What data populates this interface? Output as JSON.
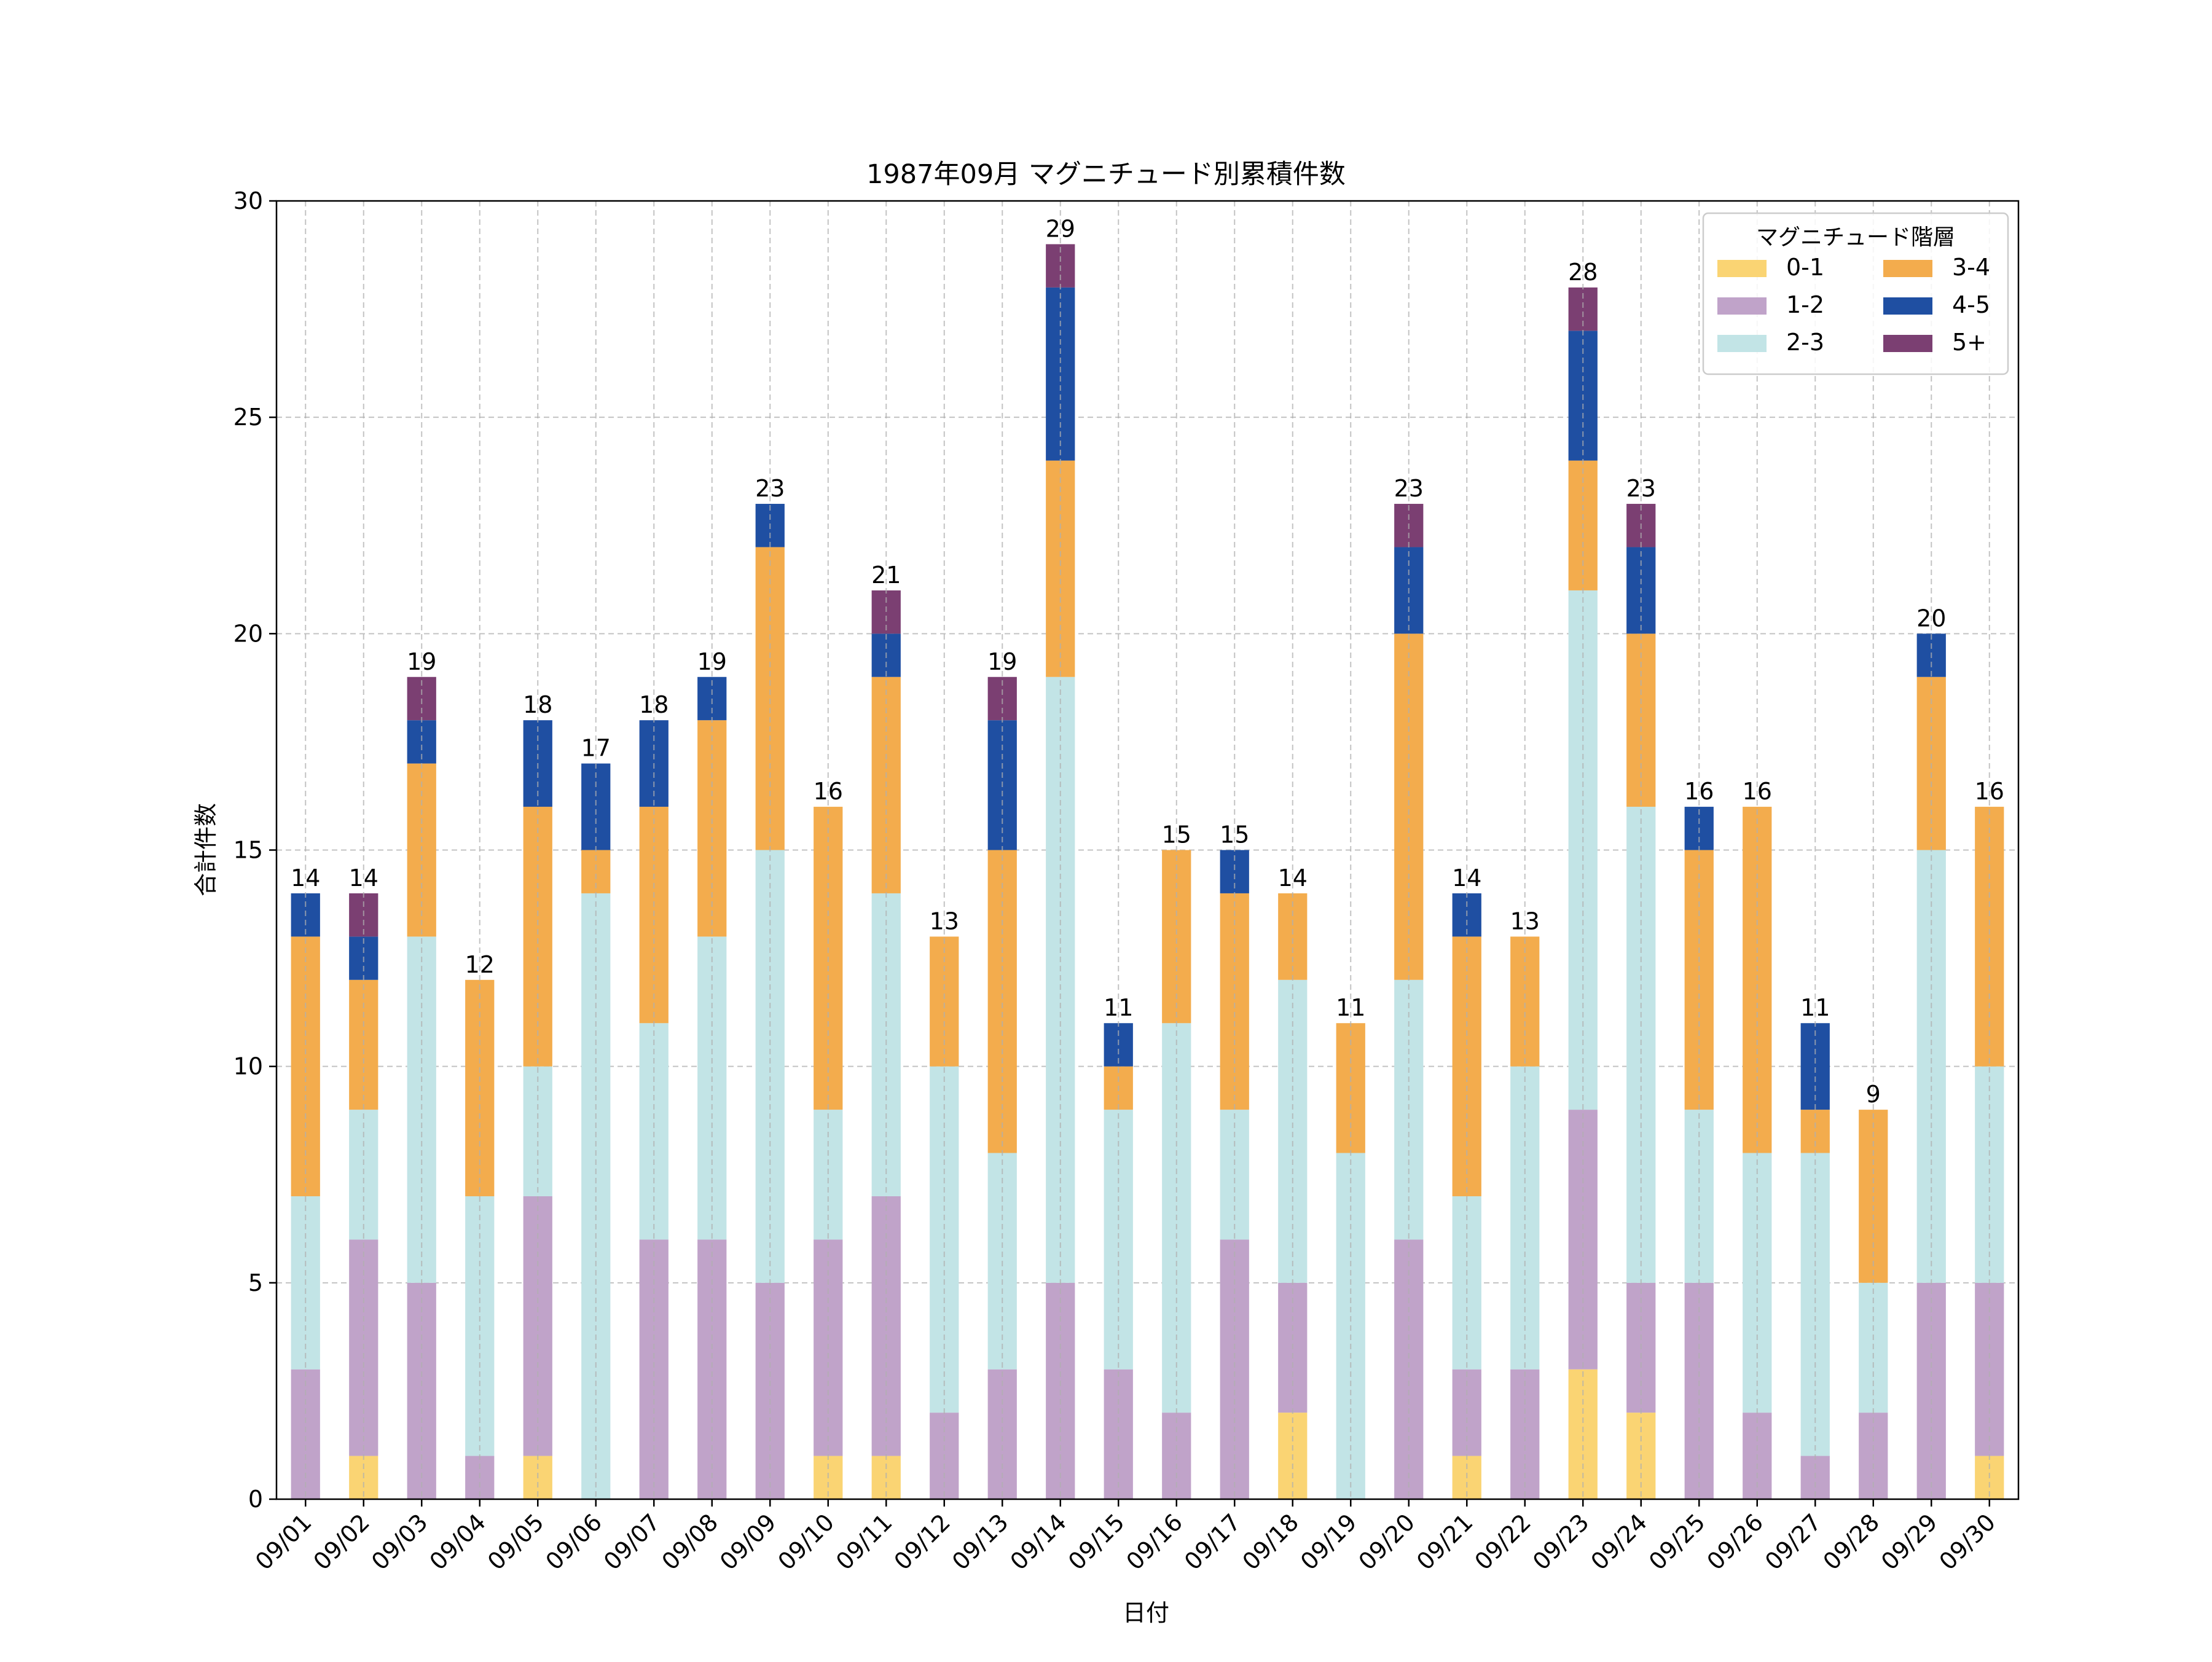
{
  "chart_data": {
    "type": "bar",
    "stacked": true,
    "title": "1987年09月 マグニチュード別累積件数",
    "xlabel": "日付",
    "ylabel": "合計件数",
    "ylim": [
      0,
      30
    ],
    "yticks": [
      0,
      5,
      10,
      15,
      20,
      25,
      30
    ],
    "grid": true,
    "legend_title": "マグニチュード階層",
    "legend_position": "top-right",
    "categories": [
      "09/01",
      "09/02",
      "09/03",
      "09/04",
      "09/05",
      "09/06",
      "09/07",
      "09/08",
      "09/09",
      "09/10",
      "09/11",
      "09/12",
      "09/13",
      "09/14",
      "09/15",
      "09/16",
      "09/17",
      "09/18",
      "09/19",
      "09/20",
      "09/21",
      "09/22",
      "09/23",
      "09/24",
      "09/25",
      "09/26",
      "09/27",
      "09/28",
      "09/29",
      "09/30"
    ],
    "series": [
      {
        "name": "0-1",
        "color": "#fad473",
        "values": [
          0,
          1,
          0,
          0,
          1,
          0,
          0,
          0,
          0,
          1,
          1,
          0,
          0,
          0,
          0,
          0,
          0,
          2,
          0,
          0,
          1,
          0,
          3,
          2,
          0,
          0,
          0,
          0,
          0,
          1
        ]
      },
      {
        "name": "1-2",
        "color": "#c0a3c9",
        "values": [
          3,
          5,
          5,
          1,
          6,
          0,
          6,
          6,
          5,
          5,
          6,
          2,
          3,
          5,
          3,
          2,
          6,
          3,
          0,
          6,
          2,
          3,
          6,
          3,
          5,
          2,
          1,
          2,
          5,
          4
        ]
      },
      {
        "name": "2-3",
        "color": "#c2e4e6",
        "values": [
          4,
          3,
          8,
          6,
          3,
          14,
          5,
          7,
          10,
          3,
          7,
          8,
          5,
          14,
          6,
          9,
          3,
          7,
          8,
          6,
          4,
          7,
          12,
          11,
          4,
          6,
          7,
          3,
          10,
          5
        ]
      },
      {
        "name": "3-4",
        "color": "#f3ac4d",
        "values": [
          6,
          3,
          4,
          5,
          6,
          1,
          5,
          5,
          7,
          7,
          5,
          3,
          7,
          5,
          1,
          4,
          5,
          2,
          3,
          8,
          6,
          3,
          3,
          4,
          6,
          8,
          1,
          4,
          4,
          6
        ]
      },
      {
        "name": "4-5",
        "color": "#1f4fa2",
        "values": [
          1,
          1,
          1,
          0,
          2,
          2,
          2,
          1,
          1,
          0,
          1,
          0,
          3,
          4,
          1,
          0,
          1,
          0,
          0,
          2,
          1,
          0,
          3,
          2,
          1,
          0,
          2,
          0,
          1,
          0
        ]
      },
      {
        "name": "5+",
        "color": "#7b3f72",
        "values": [
          0,
          1,
          1,
          0,
          0,
          0,
          0,
          0,
          0,
          0,
          1,
          0,
          1,
          1,
          0,
          0,
          0,
          0,
          0,
          1,
          0,
          0,
          1,
          1,
          0,
          0,
          0,
          0,
          0,
          0
        ]
      }
    ],
    "totals": [
      14,
      14,
      19,
      12,
      18,
      17,
      18,
      19,
      23,
      16,
      21,
      13,
      19,
      29,
      11,
      15,
      15,
      14,
      11,
      23,
      14,
      13,
      28,
      23,
      16,
      16,
      11,
      9,
      20,
      16
    ]
  }
}
